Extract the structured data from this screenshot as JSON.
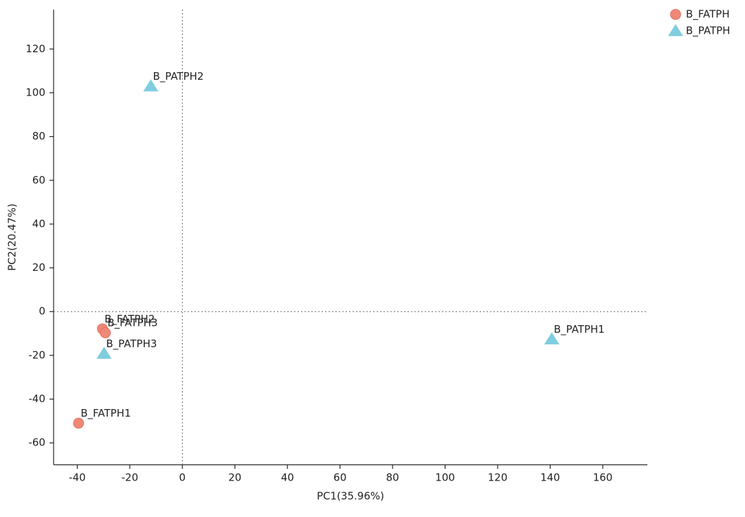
{
  "chart_data": {
    "type": "scatter",
    "xlabel": "PC1(35.96%)",
    "ylabel": "PC2(20.47%)",
    "xlim": [
      -49,
      177
    ],
    "ylim": [
      -70,
      138
    ],
    "xticks": [
      -40,
      -20,
      0,
      20,
      40,
      60,
      80,
      100,
      120,
      140,
      160
    ],
    "yticks": [
      -60,
      -40,
      -20,
      0,
      20,
      40,
      60,
      80,
      100,
      120
    ],
    "zero_lines": true,
    "legend": "top-right",
    "series": [
      {
        "name": "B_FATPH",
        "color": "#ee8877",
        "marker": "circle",
        "x": [
          -39.5,
          -30.4,
          -29.3
        ],
        "values": [
          -51,
          -7.9,
          -9.7
        ],
        "labels": [
          "B_FATPH1",
          "B_FATPH2",
          "B_FATPH3"
        ]
      },
      {
        "name": "B_PATPH",
        "color": "#80cde0",
        "marker": "triangle",
        "x": [
          140.6,
          -12.0,
          -29.8
        ],
        "values": [
          -12.6,
          103,
          -19.2
        ],
        "labels": [
          "B_PATPH1",
          "B_PATPH2",
          "B_PATPH3"
        ]
      }
    ]
  }
}
